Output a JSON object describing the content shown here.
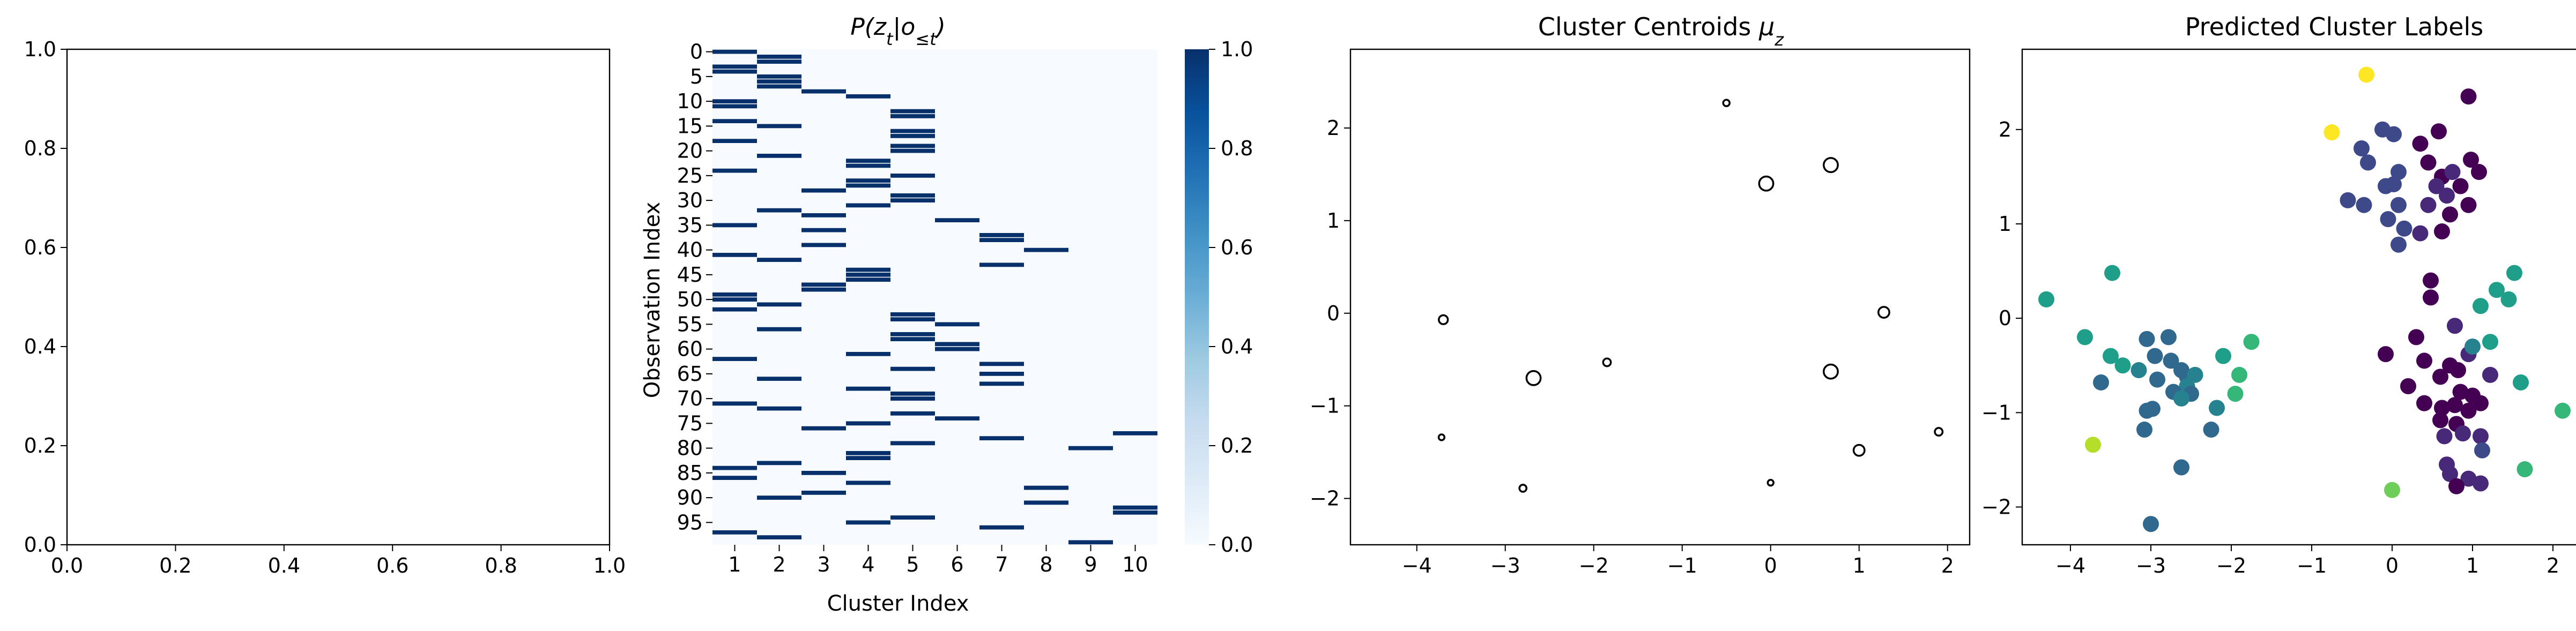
{
  "chart_data": [
    {
      "type": "scatter",
      "title": "",
      "xlabel": "",
      "ylabel": "",
      "xlim": [
        0,
        1
      ],
      "ylim": [
        0,
        1
      ],
      "xticks": [
        "0.0",
        "0.2",
        "0.4",
        "0.6",
        "0.8",
        "1.0"
      ],
      "yticks": [
        "0.0",
        "0.2",
        "0.4",
        "0.6",
        "0.8",
        "1.0"
      ],
      "points": []
    },
    {
      "type": "heatmap",
      "title": "P(z_t | o_{≤t})",
      "xlabel": "Cluster Index",
      "ylabel": "Observation Index",
      "columns": [
        "1",
        "2",
        "3",
        "4",
        "5",
        "6",
        "7",
        "8",
        "9",
        "10"
      ],
      "row_tick_labels": [
        "0",
        "5",
        "10",
        "15",
        "20",
        "25",
        "30",
        "35",
        "40",
        "45",
        "50",
        "55",
        "60",
        "65",
        "70",
        "75",
        "80",
        "85",
        "90",
        "95"
      ],
      "row_count": 100,
      "value_range": [
        0,
        1
      ],
      "colorbar_ticks": [
        "0.0",
        "0.2",
        "0.4",
        "0.6",
        "0.8",
        "1.0"
      ],
      "colormap": [
        "#f7fbff",
        "#deebf7",
        "#c6dbef",
        "#9ecae1",
        "#6baed6",
        "#4292c6",
        "#2171b5",
        "#08519c",
        "#08306b"
      ],
      "assignment_by_row": [
        1,
        2,
        2,
        1,
        1,
        2,
        2,
        2,
        3,
        4,
        1,
        1,
        5,
        5,
        1,
        2,
        5,
        5,
        1,
        5,
        5,
        2,
        4,
        4,
        1,
        5,
        4,
        4,
        3,
        5,
        5,
        4,
        2,
        3,
        6,
        1,
        3,
        7,
        7,
        3,
        8,
        1,
        2,
        7,
        4,
        4,
        4,
        3,
        3,
        1,
        1,
        2,
        1,
        5,
        5,
        6,
        2,
        5,
        5,
        6,
        6,
        4,
        1,
        7,
        5,
        7,
        2,
        7,
        4,
        5,
        5,
        1,
        2,
        5,
        6,
        4,
        3,
        10,
        7,
        5,
        9,
        4,
        4,
        2,
        1,
        3,
        1,
        4,
        8,
        3,
        2,
        8,
        10,
        10,
        5,
        4,
        7,
        1,
        2,
        9
      ]
    },
    {
      "type": "scatter",
      "title": "Cluster Centroids μ_z",
      "xlabel": "",
      "ylabel": "",
      "xlim": [
        -4.75,
        2.25
      ],
      "ylim": [
        -2.5,
        2.85
      ],
      "xticks": [
        -4,
        -3,
        -2,
        -1,
        0,
        1,
        2
      ],
      "yticks": [
        -2,
        -1,
        0,
        1,
        2
      ],
      "marker_color": "#000000",
      "points": [
        {
          "x": -0.5,
          "y": 2.27,
          "size": 0.25
        },
        {
          "x": -0.05,
          "y": 1.4,
          "size": 0.85
        },
        {
          "x": 0.68,
          "y": 1.6,
          "size": 0.85
        },
        {
          "x": 1.28,
          "y": 0.01,
          "size": 0.6
        },
        {
          "x": -3.7,
          "y": -0.07,
          "size": 0.45
        },
        {
          "x": -1.85,
          "y": -0.53,
          "size": 0.35
        },
        {
          "x": -2.68,
          "y": -0.7,
          "size": 0.85
        },
        {
          "x": 0.68,
          "y": -0.63,
          "size": 0.85
        },
        {
          "x": -3.72,
          "y": -1.34,
          "size": 0.2
        },
        {
          "x": 1.0,
          "y": -1.48,
          "size": 0.6
        },
        {
          "x": 1.9,
          "y": -1.28,
          "size": 0.35
        },
        {
          "x": -2.8,
          "y": -1.89,
          "size": 0.3
        },
        {
          "x": 0.0,
          "y": -1.83,
          "size": 0.2
        }
      ]
    },
    {
      "type": "scatter",
      "title": "Predicted Cluster Labels",
      "xlabel": "",
      "ylabel": "",
      "xlim": [
        -4.6,
        2.3
      ],
      "ylim": [
        -2.4,
        2.85
      ],
      "xticks": [
        -4,
        -3,
        -2,
        -1,
        0,
        1,
        2
      ],
      "yticks": [
        -2,
        -1,
        0,
        1,
        2
      ],
      "colormap": "viridis",
      "label_colors": [
        "#440154",
        "#482878",
        "#3e4989",
        "#31688e",
        "#26828e",
        "#1f9e89",
        "#35b779",
        "#6ece58",
        "#b5de2b",
        "#fde725"
      ],
      "points": [
        {
          "x": -0.32,
          "y": 2.58,
          "label": 9
        },
        {
          "x": -0.75,
          "y": 1.97,
          "label": 9
        },
        {
          "x": 0.95,
          "y": 2.35,
          "label": 0
        },
        {
          "x": -0.12,
          "y": 2.0,
          "label": 2
        },
        {
          "x": 0.02,
          "y": 1.95,
          "label": 2
        },
        {
          "x": 0.35,
          "y": 1.85,
          "label": 0
        },
        {
          "x": 0.58,
          "y": 1.98,
          "label": 0
        },
        {
          "x": -0.38,
          "y": 1.8,
          "label": 2
        },
        {
          "x": -0.3,
          "y": 1.65,
          "label": 2
        },
        {
          "x": 0.08,
          "y": 1.55,
          "label": 2
        },
        {
          "x": 0.45,
          "y": 1.65,
          "label": 0
        },
        {
          "x": 0.62,
          "y": 1.5,
          "label": 0
        },
        {
          "x": 0.75,
          "y": 1.55,
          "label": 1
        },
        {
          "x": 0.98,
          "y": 1.68,
          "label": 0
        },
        {
          "x": 1.08,
          "y": 1.55,
          "label": 0
        },
        {
          "x": -0.08,
          "y": 1.4,
          "label": 2
        },
        {
          "x": 0.02,
          "y": 1.42,
          "label": 2
        },
        {
          "x": 0.55,
          "y": 1.4,
          "label": 1
        },
        {
          "x": 0.68,
          "y": 1.3,
          "label": 1
        },
        {
          "x": 0.85,
          "y": 1.4,
          "label": 0
        },
        {
          "x": -0.55,
          "y": 1.25,
          "label": 2
        },
        {
          "x": -0.35,
          "y": 1.2,
          "label": 2
        },
        {
          "x": 0.08,
          "y": 1.2,
          "label": 2
        },
        {
          "x": 0.45,
          "y": 1.2,
          "label": 1
        },
        {
          "x": 0.72,
          "y": 1.1,
          "label": 0
        },
        {
          "x": 0.95,
          "y": 1.2,
          "label": 0
        },
        {
          "x": -0.05,
          "y": 1.05,
          "label": 2
        },
        {
          "x": 0.15,
          "y": 0.95,
          "label": 2
        },
        {
          "x": 0.35,
          "y": 0.9,
          "label": 1
        },
        {
          "x": 0.62,
          "y": 0.92,
          "label": 0
        },
        {
          "x": 0.08,
          "y": 0.78,
          "label": 2
        },
        {
          "x": 0.48,
          "y": 0.4,
          "label": 0
        },
        {
          "x": 1.52,
          "y": 0.48,
          "label": 5
        },
        {
          "x": 1.3,
          "y": 0.3,
          "label": 5
        },
        {
          "x": 0.48,
          "y": 0.22,
          "label": 0
        },
        {
          "x": 1.1,
          "y": 0.13,
          "label": 5
        },
        {
          "x": 1.45,
          "y": 0.2,
          "label": 5
        },
        {
          "x": 0.78,
          "y": -0.08,
          "label": 1
        },
        {
          "x": 1.22,
          "y": -0.25,
          "label": 5
        },
        {
          "x": 0.3,
          "y": -0.2,
          "label": 0
        },
        {
          "x": 0.95,
          "y": -0.38,
          "label": 1
        },
        {
          "x": 1.0,
          "y": -0.3,
          "label": 4
        },
        {
          "x": -0.08,
          "y": -0.38,
          "label": 0
        },
        {
          "x": 0.4,
          "y": -0.45,
          "label": 0
        },
        {
          "x": 0.72,
          "y": -0.5,
          "label": 0
        },
        {
          "x": 0.82,
          "y": -0.55,
          "label": 0
        },
        {
          "x": 0.6,
          "y": -0.62,
          "label": 0
        },
        {
          "x": 1.22,
          "y": -0.6,
          "label": 1
        },
        {
          "x": 1.6,
          "y": -0.68,
          "label": 5
        },
        {
          "x": 0.2,
          "y": -0.72,
          "label": 0
        },
        {
          "x": 0.85,
          "y": -0.78,
          "label": 0
        },
        {
          "x": 1.0,
          "y": -0.82,
          "label": 0
        },
        {
          "x": 0.4,
          "y": -0.9,
          "label": 0
        },
        {
          "x": 0.62,
          "y": -0.95,
          "label": 0
        },
        {
          "x": 0.78,
          "y": -0.92,
          "label": 0
        },
        {
          "x": 0.95,
          "y": -0.98,
          "label": 0
        },
        {
          "x": 1.1,
          "y": -0.9,
          "label": 0
        },
        {
          "x": 2.12,
          "y": -0.98,
          "label": 6
        },
        {
          "x": 0.6,
          "y": -1.08,
          "label": 0
        },
        {
          "x": 0.8,
          "y": -1.12,
          "label": 0
        },
        {
          "x": 0.65,
          "y": -1.25,
          "label": 1
        },
        {
          "x": 0.88,
          "y": -1.22,
          "label": 1
        },
        {
          "x": 1.1,
          "y": -1.25,
          "label": 1
        },
        {
          "x": 1.12,
          "y": -1.4,
          "label": 2
        },
        {
          "x": 0.68,
          "y": -1.55,
          "label": 1
        },
        {
          "x": 1.65,
          "y": -1.6,
          "label": 6
        },
        {
          "x": 0.72,
          "y": -1.65,
          "label": 1
        },
        {
          "x": 0.95,
          "y": -1.7,
          "label": 1
        },
        {
          "x": 1.1,
          "y": -1.75,
          "label": 1
        },
        {
          "x": 0.8,
          "y": -1.78,
          "label": 0
        },
        {
          "x": 0.0,
          "y": -1.82,
          "label": 7
        },
        {
          "x": -4.3,
          "y": 0.2,
          "label": 5
        },
        {
          "x": -3.48,
          "y": 0.48,
          "label": 5
        },
        {
          "x": -3.82,
          "y": -0.2,
          "label": 5
        },
        {
          "x": -3.05,
          "y": -0.22,
          "label": 3
        },
        {
          "x": -2.78,
          "y": -0.2,
          "label": 3
        },
        {
          "x": -1.75,
          "y": -0.25,
          "label": 6
        },
        {
          "x": -3.5,
          "y": -0.4,
          "label": 5
        },
        {
          "x": -2.95,
          "y": -0.4,
          "label": 3
        },
        {
          "x": -3.35,
          "y": -0.5,
          "label": 5
        },
        {
          "x": -2.75,
          "y": -0.45,
          "label": 3
        },
        {
          "x": -2.62,
          "y": -0.55,
          "label": 3
        },
        {
          "x": -2.1,
          "y": -0.4,
          "label": 5
        },
        {
          "x": -3.15,
          "y": -0.55,
          "label": 4
        },
        {
          "x": -2.55,
          "y": -0.62,
          "label": 3
        },
        {
          "x": -2.45,
          "y": -0.6,
          "label": 4
        },
        {
          "x": -1.9,
          "y": -0.6,
          "label": 6
        },
        {
          "x": -2.92,
          "y": -0.65,
          "label": 3
        },
        {
          "x": -3.62,
          "y": -0.68,
          "label": 3
        },
        {
          "x": -2.55,
          "y": -0.72,
          "label": 4
        },
        {
          "x": -2.72,
          "y": -0.78,
          "label": 3
        },
        {
          "x": -2.5,
          "y": -0.8,
          "label": 3
        },
        {
          "x": -2.62,
          "y": -0.85,
          "label": 4
        },
        {
          "x": -1.95,
          "y": -0.8,
          "label": 6
        },
        {
          "x": -3.05,
          "y": -0.98,
          "label": 3
        },
        {
          "x": -2.98,
          "y": -0.96,
          "label": 3
        },
        {
          "x": -2.18,
          "y": -0.95,
          "label": 4
        },
        {
          "x": -2.25,
          "y": -1.18,
          "label": 3
        },
        {
          "x": -3.08,
          "y": -1.18,
          "label": 3
        },
        {
          "x": -3.72,
          "y": -1.34,
          "label": 8
        },
        {
          "x": -2.62,
          "y": -1.58,
          "label": 3
        },
        {
          "x": -3.0,
          "y": -2.18,
          "label": 3
        }
      ]
    }
  ]
}
